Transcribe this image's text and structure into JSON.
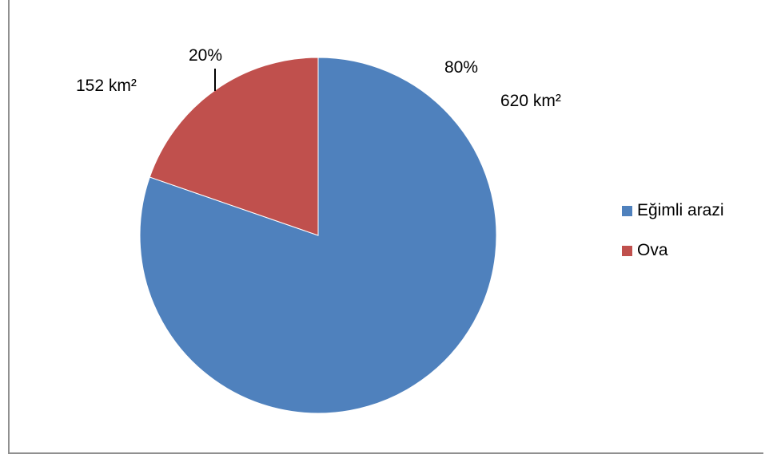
{
  "chart_data": {
    "type": "pie",
    "categories": [
      "Eğimli arazi",
      "Ova"
    ],
    "values": [
      620,
      152
    ],
    "percents": [
      "80%",
      "20%"
    ],
    "value_labels": [
      "620 km²",
      "152 km²"
    ],
    "colors": [
      "#4f81bd",
      "#c0504d"
    ],
    "legend_position": "right"
  }
}
